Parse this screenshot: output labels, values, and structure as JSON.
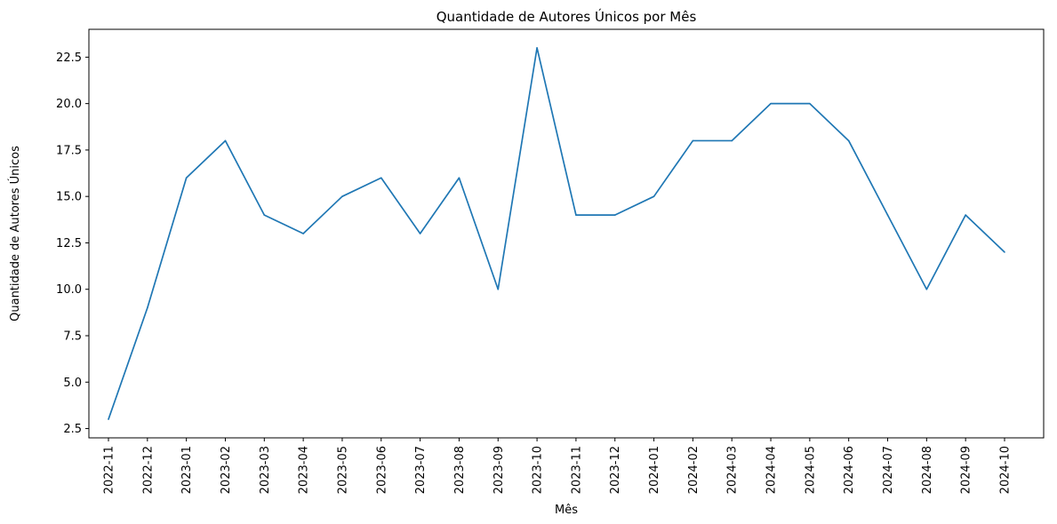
{
  "chart_data": {
    "type": "line",
    "title": "Quantidade de Autores Únicos por Mês",
    "xlabel": "Mês",
    "ylabel": "Quantidade de Autores Únicos",
    "categories": [
      "2022-11",
      "2022-12",
      "2023-01",
      "2023-02",
      "2023-03",
      "2023-04",
      "2023-05",
      "2023-06",
      "2023-07",
      "2023-08",
      "2023-09",
      "2023-10",
      "2023-11",
      "2023-12",
      "2024-01",
      "2024-02",
      "2024-03",
      "2024-04",
      "2024-05",
      "2024-06",
      "2024-07",
      "2024-08",
      "2024-09",
      "2024-10"
    ],
    "series": [
      {
        "values": [
          3,
          9,
          16,
          18,
          14,
          13,
          15,
          16,
          13,
          16,
          10,
          23,
          14,
          14,
          15,
          18,
          18,
          20,
          20,
          18,
          14,
          10,
          14,
          12
        ]
      }
    ],
    "ylim": [
      2,
      24
    ],
    "yticks": [
      2.5,
      5.0,
      7.5,
      10.0,
      12.5,
      15.0,
      17.5,
      20.0,
      22.5
    ],
    "ytick_labels": [
      "2.5",
      "5.0",
      "7.5",
      "10.0",
      "12.5",
      "15.0",
      "17.5",
      "20.0",
      "22.5"
    ],
    "line_color": "#1f77b4",
    "grid": false
  }
}
